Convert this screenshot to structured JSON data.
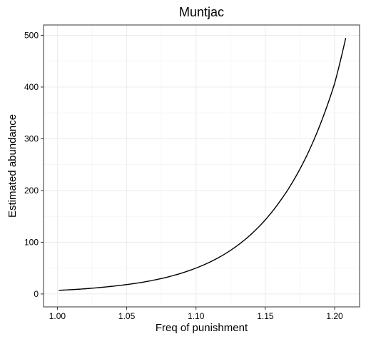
{
  "chart_data": {
    "type": "line",
    "title": "Muntjac",
    "xlabel": "Freq of punishment",
    "ylabel": "Estimated abundance",
    "xlim": [
      0.99,
      1.218
    ],
    "ylim": [
      -25,
      520
    ],
    "xticks": [
      1.0,
      1.05,
      1.1,
      1.15,
      1.2
    ],
    "xtick_labels": [
      "1.00",
      "1.05",
      "1.10",
      "1.15",
      "1.20"
    ],
    "yticks": [
      0,
      100,
      200,
      300,
      400,
      500
    ],
    "ytick_labels": [
      "0",
      "100",
      "200",
      "300",
      "400",
      "500"
    ],
    "grid": true,
    "legend": "none",
    "series": [
      {
        "color": "#000000",
        "x": [
          1.001,
          1.02,
          1.04,
          1.06,
          1.08,
          1.1,
          1.12,
          1.14,
          1.16,
          1.18,
          1.2,
          1.208
        ],
        "y": [
          7,
          10,
          15,
          22,
          33,
          50,
          76,
          116,
          177,
          268,
          407,
          495
        ]
      }
    ]
  }
}
